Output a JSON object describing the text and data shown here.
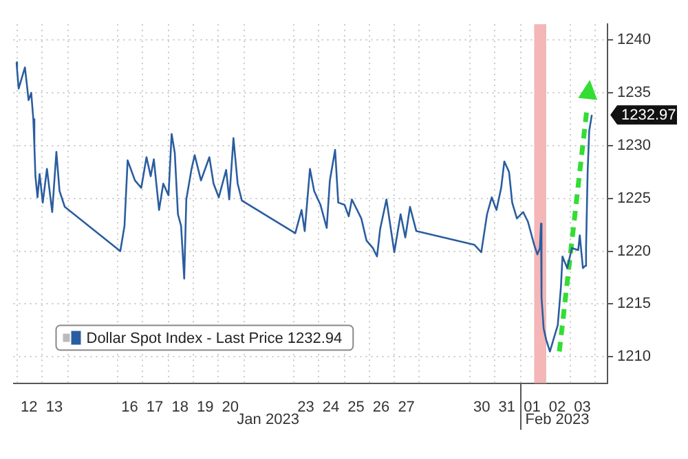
{
  "chart_data": {
    "type": "line",
    "xlim": [
      "2023-01-11T21:00",
      "2023-02-04T12:00"
    ],
    "ylim": [
      1207.5,
      1241.5
    ],
    "xticks": [
      {
        "value": "2023-01-12T12:00",
        "label": "12"
      },
      {
        "value": "2023-01-13T12:00",
        "label": "13"
      },
      {
        "value": "2023-01-16T12:00",
        "label": "16"
      },
      {
        "value": "2023-01-17T12:00",
        "label": "17"
      },
      {
        "value": "2023-01-18T12:00",
        "label": "18"
      },
      {
        "value": "2023-01-19T12:00",
        "label": "19"
      },
      {
        "value": "2023-01-20T12:00",
        "label": "20"
      },
      {
        "value": "2023-01-23T12:00",
        "label": "23"
      },
      {
        "value": "2023-01-24T12:00",
        "label": "24"
      },
      {
        "value": "2023-01-25T12:00",
        "label": "25"
      },
      {
        "value": "2023-01-26T12:00",
        "label": "26"
      },
      {
        "value": "2023-01-27T12:00",
        "label": "27"
      },
      {
        "value": "2023-01-30T12:00",
        "label": "30"
      },
      {
        "value": "2023-01-31T12:00",
        "label": "31"
      },
      {
        "value": "2023-02-01T12:00",
        "label": "01"
      },
      {
        "value": "2023-02-02T12:00",
        "label": "02"
      },
      {
        "value": "2023-02-03T12:00",
        "label": "03"
      }
    ],
    "yticks": [
      1210,
      1215,
      1220,
      1225,
      1230,
      1235,
      1240
    ],
    "grid": true,
    "legend": "bottom left",
    "line_style": "solid",
    "marker": "none",
    "series": [
      {
        "name": "Dollar Spot Index - Last Price 1232.94",
        "color": "#2a5d9f",
        "x": [
          "2023-01-12T00:00",
          "2023-01-12T00:30",
          "2023-01-12T02:00",
          "2023-01-12T08:00",
          "2023-01-12T11:30",
          "2023-01-12T14:00",
          "2023-01-12T16:00",
          "2023-01-12T17:00",
          "2023-01-12T18:00",
          "2023-01-12T20:00",
          "2023-01-12T22:00",
          "2023-01-13T01:00",
          "2023-01-13T05:00",
          "2023-01-13T10:00",
          "2023-01-13T14:00",
          "2023-01-13T17:00",
          "2023-01-13T22:00",
          "2023-01-16T03:00",
          "2023-01-16T07:00",
          "2023-01-16T10:00",
          "2023-01-16T17:00",
          "2023-01-16T23:00",
          "2023-01-17T04:00",
          "2023-01-17T08:00",
          "2023-01-17T11:00",
          "2023-01-17T16:00",
          "2023-01-17T20:00",
          "2023-01-18T01:00",
          "2023-01-18T04:00",
          "2023-01-18T07:00",
          "2023-01-18T10:00",
          "2023-01-18T13:00",
          "2023-01-18T16:00",
          "2023-01-18T18:00",
          "2023-01-18T23:00",
          "2023-01-19T02:00",
          "2023-01-19T08:00",
          "2023-01-19T16:00",
          "2023-01-19T20:00",
          "2023-01-20T01:00",
          "2023-01-20T08:00",
          "2023-01-20T11:00",
          "2023-01-20T15:00",
          "2023-01-20T19:00",
          "2023-01-20T23:00",
          "2023-01-23T02:00",
          "2023-01-23T08:00",
          "2023-01-23T11:00",
          "2023-01-23T16:00",
          "2023-01-23T20:00",
          "2023-01-24T02:00",
          "2023-01-24T08:00",
          "2023-01-24T11:00",
          "2023-01-24T16:00",
          "2023-01-24T19:00",
          "2023-01-25T01:00",
          "2023-01-25T05:00",
          "2023-01-25T08:00",
          "2023-01-25T17:00",
          "2023-01-25T22:00",
          "2023-01-26T04:00",
          "2023-01-26T08:00",
          "2023-01-26T11:00",
          "2023-01-26T17:00",
          "2023-01-27T00:30",
          "2023-01-27T06:30",
          "2023-01-27T11:00",
          "2023-01-27T15:30",
          "2023-01-27T21:30",
          "2023-01-30T05:00",
          "2023-01-30T11:30",
          "2023-01-30T17:00",
          "2023-01-30T21:30",
          "2023-01-31T02:00",
          "2023-01-31T06:30",
          "2023-01-31T09:30",
          "2023-01-31T14:00",
          "2023-01-31T17:00",
          "2023-01-31T21:30",
          "2023-02-01T03:30",
          "2023-02-01T08:00",
          "2023-02-01T14:00",
          "2023-02-01T17:00",
          "2023-02-01T19:30",
          "2023-02-01T20:30",
          "2023-02-01T21:00",
          "2023-02-01T23:00",
          "2023-02-02T01:30",
          "2023-02-02T05:00",
          "2023-02-02T09:30",
          "2023-02-02T12:30",
          "2023-02-02T15:30",
          "2023-02-02T17:00",
          "2023-02-02T21:30",
          "2023-02-03T02:00",
          "2023-02-03T08:00",
          "2023-02-03T09:30",
          "2023-02-03T12:30",
          "2023-02-03T14:30",
          "2023-02-03T15:30",
          "2023-02-03T17:00",
          "2023-02-03T18:30",
          "2023-02-03T21:00"
        ],
        "values": [
          1237.9,
          1237.2,
          1235.4,
          1237.4,
          1234.3,
          1235.0,
          1232.5,
          1230.0,
          1227.1,
          1225.1,
          1227.3,
          1224.6,
          1227.8,
          1223.7,
          1229.4,
          1225.7,
          1224.2,
          1220.0,
          1222.4,
          1228.6,
          1226.7,
          1226.0,
          1228.9,
          1227.1,
          1228.7,
          1223.9,
          1226.4,
          1225.3,
          1231.1,
          1229.3,
          1223.5,
          1222.4,
          1217.4,
          1224.9,
          1227.8,
          1229.1,
          1226.7,
          1228.9,
          1226.4,
          1225.1,
          1227.7,
          1224.9,
          1230.7,
          1226.4,
          1224.8,
          1221.7,
          1223.9,
          1221.9,
          1227.8,
          1225.7,
          1224.4,
          1222.2,
          1226.7,
          1229.6,
          1224.6,
          1224.4,
          1223.3,
          1224.9,
          1223.1,
          1221.0,
          1220.3,
          1219.5,
          1222.1,
          1224.9,
          1219.9,
          1223.5,
          1221.3,
          1224.2,
          1221.9,
          1220.6,
          1219.9,
          1223.5,
          1225.1,
          1223.9,
          1226.0,
          1228.5,
          1227.5,
          1224.6,
          1223.1,
          1223.7,
          1222.8,
          1220.6,
          1219.7,
          1220.3,
          1222.6,
          1215.6,
          1212.7,
          1211.6,
          1210.5,
          1212.0,
          1213.0,
          1216.6,
          1219.5,
          1218.4,
          1220.3,
          1220.1,
          1221.5,
          1218.4,
          1218.6,
          1220.3,
          1227.5,
          1231.4,
          1232.9
        ]
      },
      {
        "color": "#33dd33",
        "line_style": "dashed",
        "x": [
          "2023-02-02T14:00",
          "2023-02-03T16:00"
        ],
        "values": [
          1210.5,
          1233.2
        ]
      }
    ],
    "bands": [
      {
        "axis": "x",
        "from": "2023-02-01T14:00",
        "to": "2023-02-02T01:30",
        "color": "#f4b6b6"
      }
    ],
    "annotations": [
      "Jan 2023",
      "Feb 2023",
      "1232.97"
    ]
  }
}
